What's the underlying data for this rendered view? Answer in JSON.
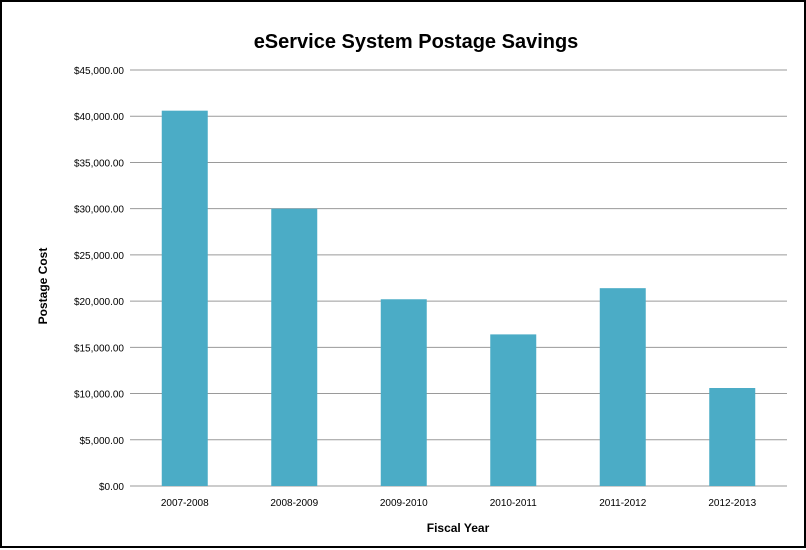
{
  "chart_data": {
    "type": "bar",
    "title": "eService System Postage Savings",
    "xlabel": "Fiscal Year",
    "ylabel": "Postage Cost",
    "categories": [
      "2007-2008",
      "2008-2009",
      "2009-2010",
      "2010-2011",
      "2011-2012",
      "2012-2013"
    ],
    "values": [
      40600,
      30000,
      20200,
      16400,
      21400,
      10600
    ],
    "ylim": [
      0,
      45000
    ],
    "yticks": [
      0,
      5000,
      10000,
      15000,
      20000,
      25000,
      30000,
      35000,
      40000,
      45000
    ],
    "ytick_labels": [
      "$0.00",
      "$5,000.00",
      "$10,000.00",
      "$15,000.00",
      "$20,000.00",
      "$25,000.00",
      "$30,000.00",
      "$35,000.00",
      "$40,000.00",
      "$45,000.00"
    ],
    "grid": true,
    "legend": "none",
    "bar_color": "#4BACC6"
  }
}
